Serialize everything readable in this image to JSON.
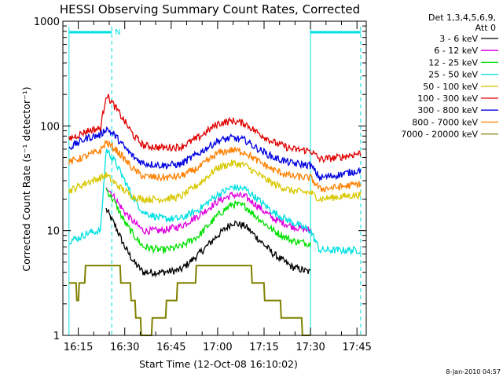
{
  "chart_data": {
    "type": "line",
    "title": "HESSI Observing Summary Count Rates, Corrected",
    "xlabel": "Start Time (12-Oct-08 16:10:02)",
    "ylabel": "Corrected Count Rate (s⁻¹ detector⁻¹)",
    "y_scale": "log",
    "ylim": [
      1,
      1000
    ],
    "xlim_minutes": [
      16.167,
      17.8
    ],
    "x_tick_labels": [
      "16:15",
      "16:30",
      "16:45",
      "17:00",
      "17:15",
      "17:30",
      "17:45"
    ],
    "y_tick_labels": [
      "1",
      "10",
      "100",
      "1000"
    ],
    "legend_header": [
      "Det 1,3,4,5,6,9,",
      "Att 0"
    ],
    "legend_position": "right",
    "timestamp": "8-Jan-2010 04:57",
    "flags": {
      "label": "N",
      "color": "#00e0e0",
      "bars": [
        [
          16.2,
          16.43
        ],
        [
          17.5,
          17.77
        ]
      ],
      "dashed_lines": [
        16.43,
        17.77
      ],
      "solid_lines": [
        16.2,
        17.5
      ]
    },
    "series": [
      {
        "name": "3 - 6 keV",
        "color": "#000000",
        "points": [
          [
            16.4,
            16
          ],
          [
            16.45,
            11
          ],
          [
            16.5,
            7
          ],
          [
            16.55,
            5
          ],
          [
            16.6,
            4
          ],
          [
            16.7,
            4
          ],
          [
            16.8,
            4.2
          ],
          [
            16.9,
            6
          ],
          [
            17.0,
            9
          ],
          [
            17.08,
            12
          ],
          [
            17.15,
            11
          ],
          [
            17.2,
            9
          ],
          [
            17.3,
            6
          ],
          [
            17.4,
            4.5
          ],
          [
            17.5,
            4
          ]
        ]
      },
      {
        "name": "6 - 12 keV",
        "color": "#e000e0",
        "points": [
          [
            16.4,
            27
          ],
          [
            16.45,
            20
          ],
          [
            16.5,
            15
          ],
          [
            16.55,
            12
          ],
          [
            16.6,
            10
          ],
          [
            16.7,
            10
          ],
          [
            16.8,
            11
          ],
          [
            16.9,
            14
          ],
          [
            17.0,
            19
          ],
          [
            17.08,
            22
          ],
          [
            17.15,
            21
          ],
          [
            17.2,
            18
          ],
          [
            17.3,
            13
          ],
          [
            17.4,
            11
          ],
          [
            17.5,
            10
          ]
        ]
      },
      {
        "name": "12 - 25 keV",
        "color": "#00e000",
        "points": [
          [
            16.4,
            25
          ],
          [
            16.45,
            18
          ],
          [
            16.5,
            12
          ],
          [
            16.55,
            9
          ],
          [
            16.6,
            7
          ],
          [
            16.7,
            6.5
          ],
          [
            16.8,
            7
          ],
          [
            16.9,
            9
          ],
          [
            17.0,
            14
          ],
          [
            17.08,
            18
          ],
          [
            17.15,
            17
          ],
          [
            17.2,
            14
          ],
          [
            17.3,
            10
          ],
          [
            17.4,
            8
          ],
          [
            17.5,
            7.5
          ]
        ]
      },
      {
        "name": "25 - 50 keV",
        "color": "#00e0e0",
        "points": [
          [
            16.2,
            8
          ],
          [
            16.25,
            8.5
          ],
          [
            16.3,
            9.5
          ],
          [
            16.37,
            10
          ],
          [
            16.4,
            60
          ],
          [
            16.45,
            45
          ],
          [
            16.5,
            30
          ],
          [
            16.55,
            20
          ],
          [
            16.6,
            15
          ],
          [
            16.7,
            13
          ],
          [
            16.8,
            13
          ],
          [
            16.9,
            16
          ],
          [
            17.0,
            22
          ],
          [
            17.08,
            26
          ],
          [
            17.15,
            25
          ],
          [
            17.2,
            21
          ],
          [
            17.3,
            15
          ],
          [
            17.4,
            12
          ],
          [
            17.5,
            10
          ],
          [
            17.55,
            6.5
          ],
          [
            17.65,
            6.5
          ],
          [
            17.77,
            6.5
          ]
        ]
      },
      {
        "name": "50 - 100 keV",
        "color": "#d8c800",
        "points": [
          [
            16.2,
            24
          ],
          [
            16.3,
            29
          ],
          [
            16.37,
            32
          ],
          [
            16.4,
            34
          ],
          [
            16.45,
            28
          ],
          [
            16.5,
            24
          ],
          [
            16.55,
            21
          ],
          [
            16.6,
            20
          ],
          [
            16.7,
            20
          ],
          [
            16.8,
            21
          ],
          [
            16.9,
            28
          ],
          [
            17.0,
            40
          ],
          [
            17.08,
            44
          ],
          [
            17.15,
            42
          ],
          [
            17.2,
            36
          ],
          [
            17.3,
            28
          ],
          [
            17.4,
            24
          ],
          [
            17.5,
            23
          ],
          [
            17.55,
            20
          ],
          [
            17.65,
            21
          ],
          [
            17.77,
            22
          ]
        ]
      },
      {
        "name": "100 - 300 keV",
        "color": "#e00000",
        "points": [
          [
            16.2,
            75
          ],
          [
            16.3,
            90
          ],
          [
            16.37,
            95
          ],
          [
            16.4,
            200
          ],
          [
            16.45,
            150
          ],
          [
            16.5,
            110
          ],
          [
            16.55,
            80
          ],
          [
            16.6,
            65
          ],
          [
            16.7,
            62
          ],
          [
            16.8,
            63
          ],
          [
            16.9,
            78
          ],
          [
            17.0,
            105
          ],
          [
            17.08,
            112
          ],
          [
            17.15,
            105
          ],
          [
            17.2,
            90
          ],
          [
            17.3,
            70
          ],
          [
            17.4,
            60
          ],
          [
            17.5,
            58
          ],
          [
            17.55,
            48
          ],
          [
            17.65,
            50
          ],
          [
            17.77,
            55
          ]
        ]
      },
      {
        "name": "300 - 800 keV",
        "color": "#0000e0",
        "points": [
          [
            16.2,
            62
          ],
          [
            16.3,
            77
          ],
          [
            16.37,
            82
          ],
          [
            16.4,
            95
          ],
          [
            16.45,
            80
          ],
          [
            16.5,
            62
          ],
          [
            16.55,
            50
          ],
          [
            16.6,
            44
          ],
          [
            16.7,
            42
          ],
          [
            16.8,
            43
          ],
          [
            16.9,
            55
          ],
          [
            17.0,
            72
          ],
          [
            17.08,
            77
          ],
          [
            17.15,
            73
          ],
          [
            17.2,
            63
          ],
          [
            17.3,
            50
          ],
          [
            17.4,
            44
          ],
          [
            17.5,
            42
          ],
          [
            17.55,
            32
          ],
          [
            17.65,
            34
          ],
          [
            17.77,
            38
          ]
        ]
      },
      {
        "name": "800 - 7000 keV",
        "color": "#ff8000",
        "points": [
          [
            16.2,
            45
          ],
          [
            16.3,
            52
          ],
          [
            16.37,
            58
          ],
          [
            16.4,
            70
          ],
          [
            16.45,
            60
          ],
          [
            16.5,
            48
          ],
          [
            16.55,
            38
          ],
          [
            16.6,
            33
          ],
          [
            16.7,
            32
          ],
          [
            16.8,
            33
          ],
          [
            16.9,
            40
          ],
          [
            17.0,
            55
          ],
          [
            17.08,
            59
          ],
          [
            17.15,
            56
          ],
          [
            17.2,
            48
          ],
          [
            17.3,
            38
          ],
          [
            17.4,
            33
          ],
          [
            17.5,
            32
          ],
          [
            17.55,
            25
          ],
          [
            17.65,
            26
          ],
          [
            17.77,
            28
          ]
        ]
      },
      {
        "name": "7000 - 20000 keV",
        "color": "#808000",
        "points": [
          [
            16.2,
            3
          ],
          [
            16.25,
            2.5
          ],
          [
            16.3,
            4.5
          ],
          [
            16.37,
            5.5
          ],
          [
            16.42,
            5.5
          ],
          [
            16.47,
            4
          ],
          [
            16.52,
            3
          ],
          [
            16.55,
            2
          ],
          [
            16.6,
            1
          ],
          [
            16.7,
            1.5
          ],
          [
            16.8,
            3
          ],
          [
            16.9,
            4
          ],
          [
            17.0,
            4.5
          ],
          [
            17.08,
            5
          ],
          [
            17.15,
            4.5
          ],
          [
            17.2,
            3.5
          ],
          [
            17.3,
            2
          ],
          [
            17.4,
            1.5
          ],
          [
            17.5,
            1
          ]
        ]
      }
    ]
  }
}
